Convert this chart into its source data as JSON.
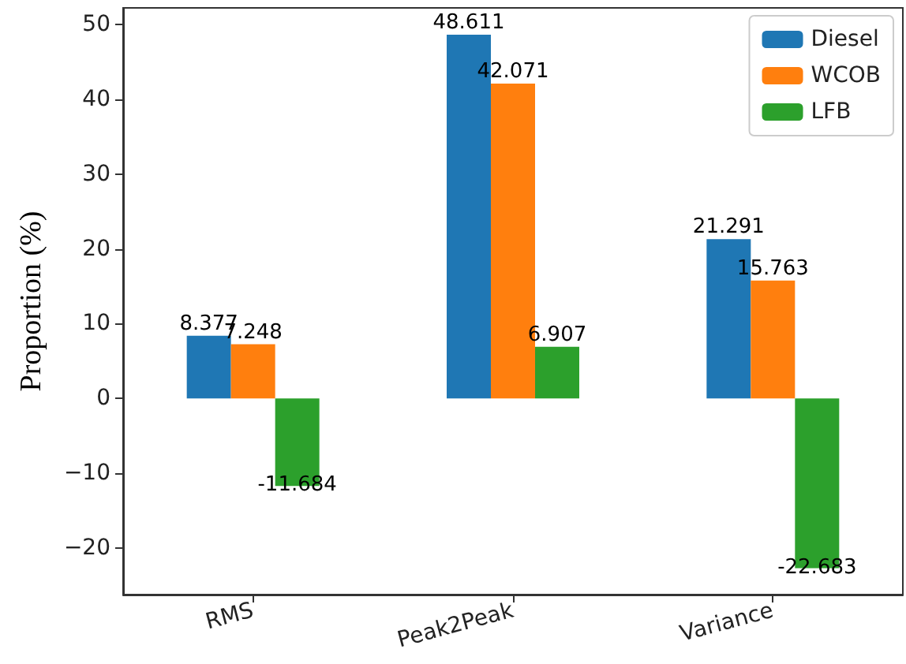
{
  "chart_data": {
    "type": "bar",
    "ylabel": "Proportion (%)",
    "categories": [
      "RMS",
      "Peak2Peak",
      "Variance"
    ],
    "series": [
      {
        "name": "Diesel",
        "color": "#1f77b4",
        "values": [
          8.377,
          48.611,
          21.291
        ]
      },
      {
        "name": "WCOB",
        "color": "#ff7f0e",
        "values": [
          7.248,
          42.071,
          15.763
        ]
      },
      {
        "name": "LFB",
        "color": "#2ca02c",
        "values": [
          -11.684,
          6.907,
          -22.683
        ]
      }
    ],
    "ylim": [
      -26.2,
      52.2
    ],
    "yticks": [
      -20,
      -10,
      0,
      10,
      20,
      30,
      40,
      50
    ],
    "data_labels": true,
    "legend": "top right",
    "grid": false
  }
}
